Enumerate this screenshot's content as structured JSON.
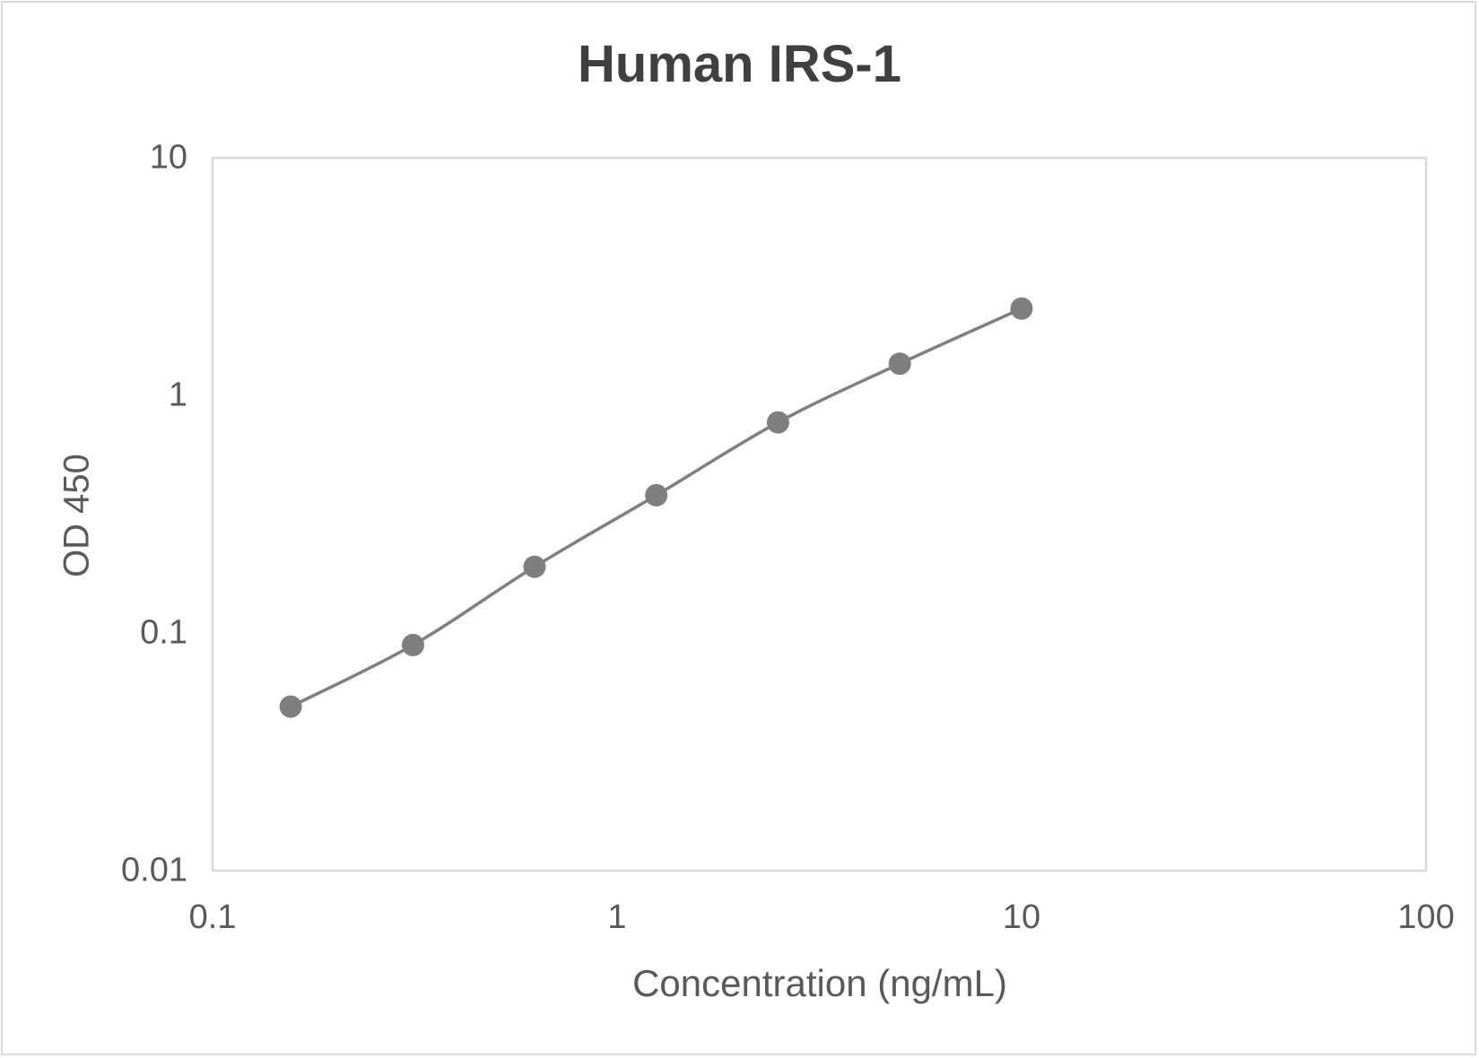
{
  "chart": {
    "title": "Human IRS-1",
    "xlabel": "Concentration (ng/mL)",
    "ylabel": "OD 450",
    "x_ticks": [
      "0.1",
      "1",
      "10",
      "100"
    ],
    "y_ticks": [
      "10",
      "1",
      "0.1",
      "0.01"
    ],
    "colors": {
      "series": "#7f7f7f",
      "plot_border": "#d9d9d9",
      "text": "#595959",
      "title": "#404040"
    }
  },
  "chart_data": {
    "type": "scatter",
    "title": "Human IRS-1",
    "xlabel": "Concentration (ng/mL)",
    "ylabel": "OD 450",
    "xscale": "log",
    "yscale": "log",
    "xlim": [
      0.1,
      100
    ],
    "ylim": [
      0.01,
      10
    ],
    "grid": false,
    "legend": null,
    "series": [
      {
        "name": "Human IRS-1",
        "style": "smoothed line with circular markers",
        "x": [
          0.156,
          0.313,
          0.625,
          1.25,
          2.5,
          5,
          10
        ],
        "y": [
          0.049,
          0.089,
          0.19,
          0.38,
          0.77,
          1.36,
          2.32
        ]
      }
    ]
  }
}
